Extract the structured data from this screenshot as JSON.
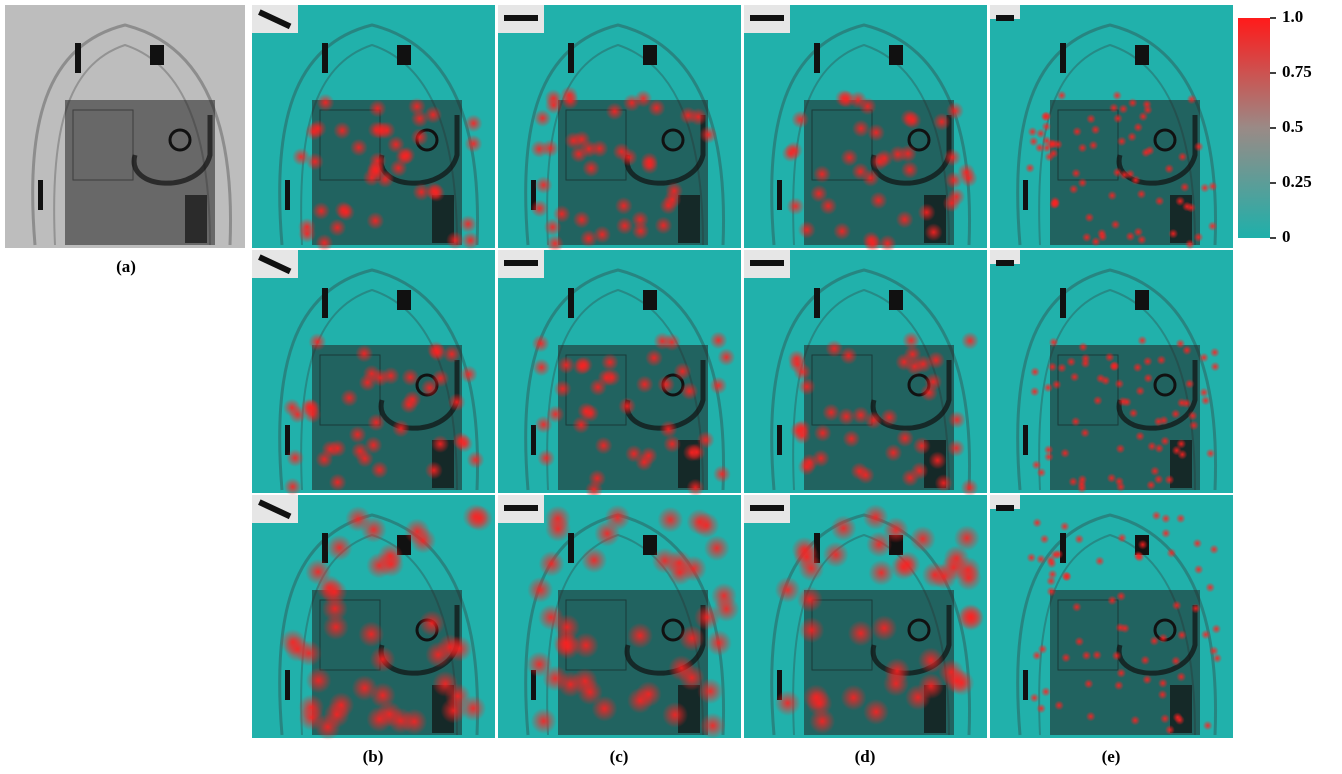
{
  "panel_labels": [
    "(a)",
    "(b)",
    "(c)",
    "(d)",
    "(e)"
  ],
  "colorbar": {
    "lim": [
      0,
      1
    ],
    "ticks": [
      {
        "value": 1,
        "label": "1.0"
      },
      0.75,
      0.5,
      0.25,
      0
    ],
    "colors": [
      "#1eb0aa",
      "#ff1a1a"
    ]
  }
}
